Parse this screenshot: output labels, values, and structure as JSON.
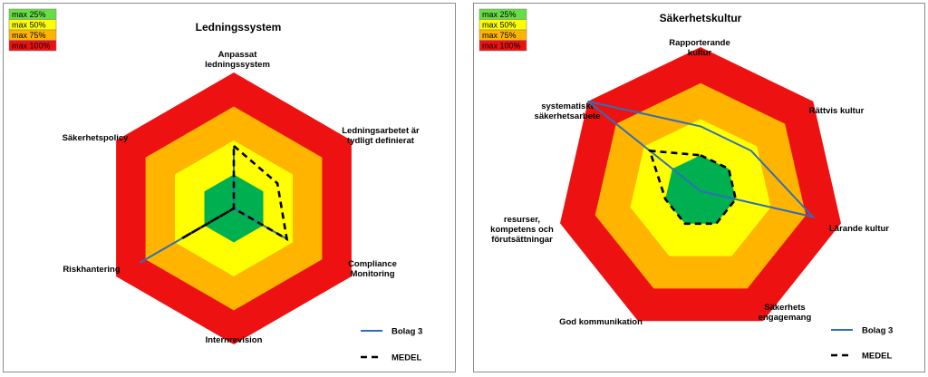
{
  "scale_legend": [
    {
      "label": "max 25%",
      "color": "#66dd44"
    },
    {
      "label": "max 50%",
      "color": "#ffff00"
    },
    {
      "label": "max 75%",
      "color": "#ffb400"
    },
    {
      "label": "max 100%",
      "color": "#ee1111"
    }
  ],
  "colors": {
    "band_25": "#00b050",
    "band_50": "#ffff00",
    "band_75": "#ffb400",
    "band_100": "#ee1111",
    "bolag3": "#2e6fb8",
    "medel": "#000000"
  },
  "chart_data": [
    {
      "type": "radar",
      "title": "Ledningssystem",
      "axes": [
        [
          "Anpassat",
          "ledningssystem"
        ],
        [
          "Ledningsarbetet  är",
          "tydligt definierat"
        ],
        [
          "Compliance",
          "Monitoring"
        ],
        [
          "Internrevision"
        ],
        [
          "Riskhantering"
        ],
        [
          "Säkerhetspolicy"
        ]
      ],
      "bands": [
        25,
        50,
        75,
        100
      ],
      "range": [
        0,
        100
      ],
      "series": [
        {
          "name": "Bolag 3",
          "style": "solid",
          "values": [
            46,
            0,
            45,
            0,
            80,
            0
          ]
        },
        {
          "name": "MEDEL",
          "style": "dashed",
          "values": [
            46,
            37,
            45,
            0,
            44,
            0
          ]
        }
      ]
    },
    {
      "type": "radar",
      "title": "Säkerhetskultur",
      "axes": [
        [
          "Rapporterande",
          "kultur"
        ],
        [
          "Rättvis kultur"
        ],
        [
          "Lärande kultur"
        ],
        [
          "Säkerhets",
          "engagemang"
        ],
        [
          "God kommunikation"
        ],
        [
          "resurser,",
          "kompetens och",
          "förutsättningar"
        ],
        [
          "systematiskt",
          "säkerhetsarbete"
        ]
      ],
      "bands": [
        25,
        50,
        75,
        100
      ],
      "range": [
        0,
        100
      ],
      "series": [
        {
          "name": "Bolag 3",
          "style": "solid",
          "values": [
            45,
            45,
            80,
            0,
            0,
            0,
            100
          ]
        },
        {
          "name": "MEDEL",
          "style": "dashed",
          "values": [
            25,
            25,
            25,
            25,
            25,
            25,
            45
          ]
        }
      ]
    }
  ]
}
